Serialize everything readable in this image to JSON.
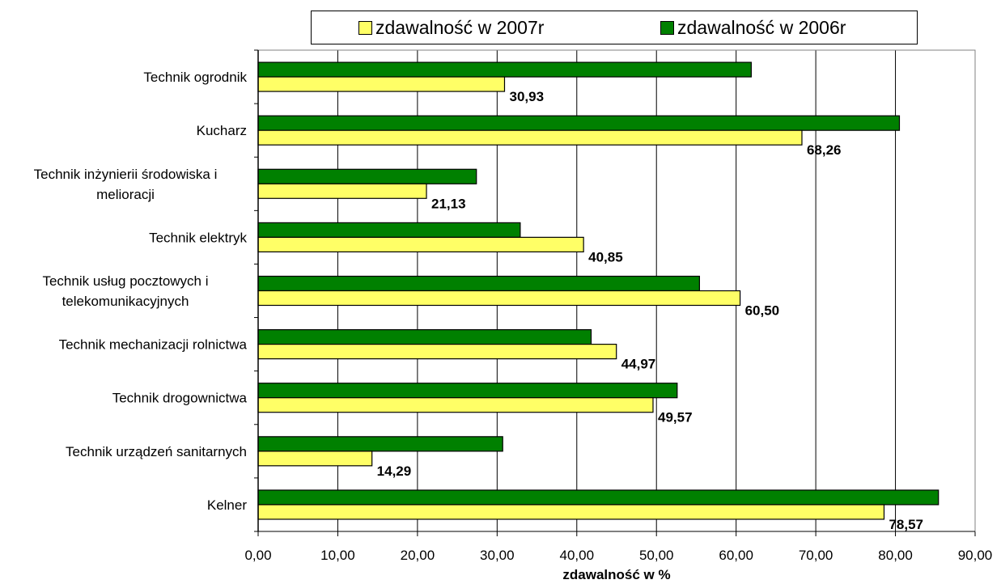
{
  "chart_data": {
    "type": "bar",
    "orientation": "horizontal",
    "categories": [
      [
        "Technik ogrodnik"
      ],
      [
        "Kucharz"
      ],
      [
        "Technik inżynierii środowiska i",
        "melioracji"
      ],
      [
        "Technik elektryk"
      ],
      [
        "Technik usług pocztowych i",
        "telekomunikacyjnych"
      ],
      [
        "Technik mechanizacji rolnictwa"
      ],
      [
        "Technik drogownictwa"
      ],
      [
        "Technik urządzeń sanitarnych"
      ],
      [
        "Kelner"
      ]
    ],
    "series": [
      {
        "name": "zdawalność w 2006r",
        "color": "#008000",
        "values": [
          61.9,
          80.5,
          27.4,
          32.9,
          55.4,
          41.8,
          52.6,
          30.7,
          85.4
        ]
      },
      {
        "name": "zdawalność w 2007r",
        "color": "#ffff66",
        "values": [
          30.93,
          68.26,
          21.13,
          40.85,
          60.5,
          44.97,
          49.57,
          14.29,
          78.57
        ],
        "data_labels": [
          "30,93",
          "68,26",
          "21,13",
          "40,85",
          "60,50",
          "44,97",
          "49,57",
          "14,29",
          "78,57"
        ]
      }
    ],
    "xlabel": "zdawalność w %",
    "ylabel": "",
    "xlim": [
      0,
      90
    ],
    "xticks": [
      "0,00",
      "10,00",
      "20,00",
      "30,00",
      "40,00",
      "50,00",
      "60,00",
      "70,00",
      "80,00",
      "90,00"
    ],
    "grid": "vertical",
    "legend": {
      "position": "top",
      "entries": [
        {
          "label": "zdawalność w 2007r",
          "color": "#ffff66"
        },
        {
          "label": "zdawalność w 2006r",
          "color": "#008000"
        }
      ]
    }
  }
}
